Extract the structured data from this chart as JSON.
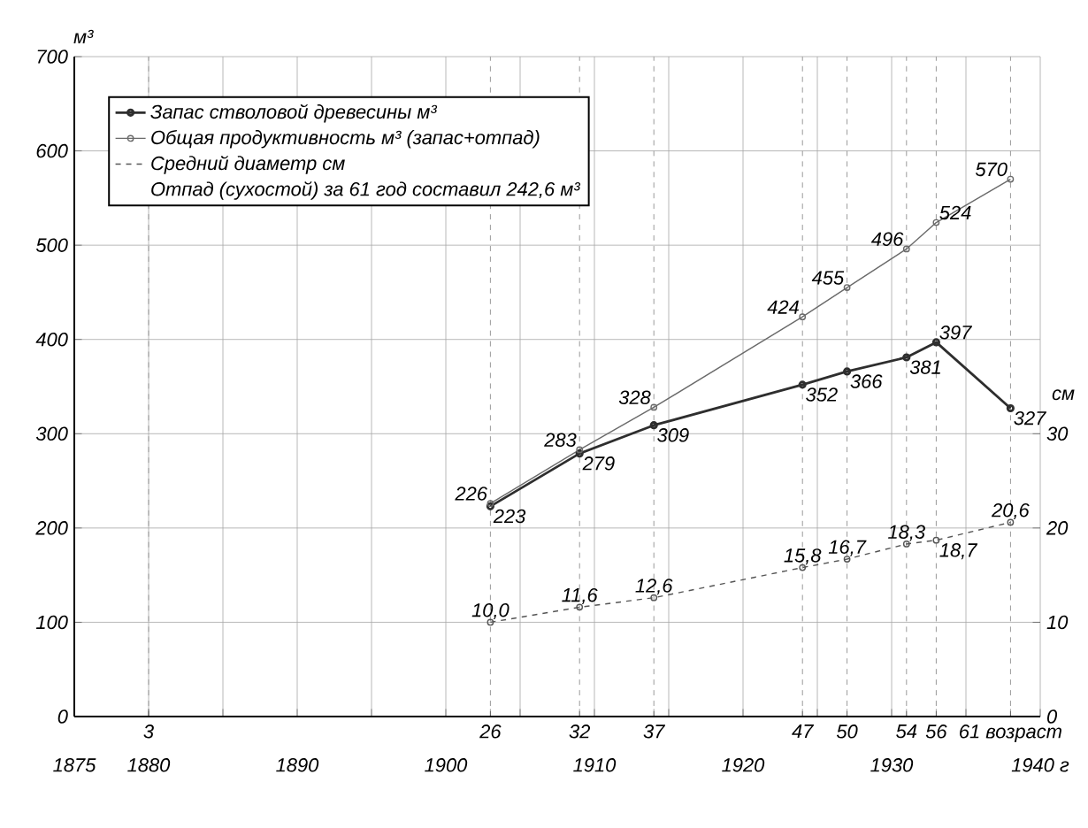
{
  "chart_data": {
    "type": "line",
    "xlim": [
      1875,
      1940
    ],
    "xticks": [
      1875,
      1880,
      {
        "value": 1885,
        "label": null
      },
      1890,
      {
        "value": 1895,
        "label": null
      },
      1900,
      {
        "value": 1905,
        "label": null
      },
      1910,
      {
        "value": 1915,
        "label": null
      },
      1920,
      {
        "value": 1925,
        "label": null
      },
      1930,
      {
        "value": 1935,
        "label": null
      },
      {
        "value": 1940,
        "label": "1940 г"
      }
    ],
    "x2lim": [
      -2,
      63
    ],
    "x2ticks": [
      3,
      26,
      32,
      37,
      47,
      50,
      54,
      56,
      {
        "value": 61,
        "label": "61 возраст"
      }
    ],
    "ylim": [
      0,
      700
    ],
    "yticks": [
      0,
      100,
      200,
      300,
      400,
      500,
      600,
      700
    ],
    "ylabel": "м³",
    "y2lim": [
      0,
      70
    ],
    "y2ticks": [
      0,
      10,
      20,
      30
    ],
    "y2label": "см",
    "grid": true,
    "legend": "top left",
    "marker": "circle",
    "annotations": [
      "Отпад (сухостой) за 61 год составил 242,6 м³"
    ],
    "series": [
      {
        "name": "Запас стволовой древесины м³",
        "color": "#2e2e2e",
        "x": [
          1903,
          1909,
          1914,
          1924,
          1927,
          1931,
          1933,
          1938
        ],
        "values": [
          223,
          279,
          309,
          352,
          366,
          381,
          397,
          327
        ],
        "value_labels": [
          "223",
          "279",
          "309",
          "352",
          "366",
          "381",
          "397",
          "327"
        ]
      },
      {
        "name": "Общая продуктивность м³ (запас+отпад)",
        "color": "#6a6a6a",
        "x": [
          1903,
          1909,
          1914,
          1924,
          1927,
          1931,
          1933,
          1938
        ],
        "values": [
          226,
          283,
          328,
          424,
          455,
          496,
          524,
          570
        ],
        "value_labels": [
          "226",
          "283",
          "328",
          "424",
          "455",
          "496",
          "524",
          "570"
        ]
      },
      {
        "name": "Средний диаметр см",
        "color": "#555555",
        "line_style": "dashed",
        "axis": "y2",
        "x": [
          1903,
          1909,
          1914,
          1924,
          1927,
          1931,
          1933,
          1938
        ],
        "values": [
          10.0,
          11.6,
          12.6,
          15.8,
          16.7,
          18.3,
          18.7,
          20.6
        ],
        "value_labels": [
          "10,0",
          "11,6",
          "12,6",
          "15,8",
          "16,7",
          "18,3",
          "18,7",
          "20,6"
        ]
      }
    ]
  }
}
